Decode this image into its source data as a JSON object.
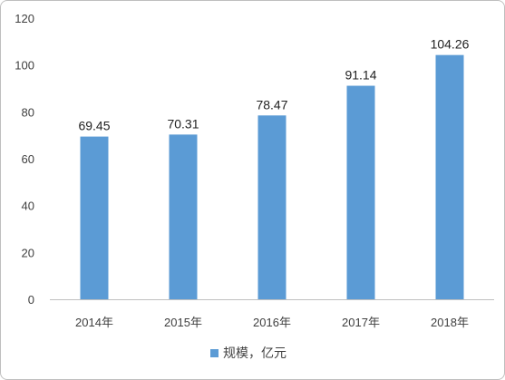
{
  "chart_data": {
    "type": "bar",
    "categories": [
      "2014年",
      "2015年",
      "2016年",
      "2017年",
      "2018年"
    ],
    "series": [
      {
        "name": "规模，亿元",
        "values": [
          69.45,
          70.31,
          78.47,
          91.14,
          104.26
        ],
        "color": "#5b9bd5"
      }
    ],
    "data_labels": [
      "69.45",
      "70.31",
      "78.47",
      "91.14",
      "104.26"
    ],
    "y_ticks": [
      "0",
      "20",
      "40",
      "60",
      "80",
      "100",
      "120"
    ],
    "ylim": [
      0,
      120
    ],
    "title": "",
    "xlabel": "",
    "ylabel": "",
    "grid": false,
    "legend_position": "bottom"
  }
}
